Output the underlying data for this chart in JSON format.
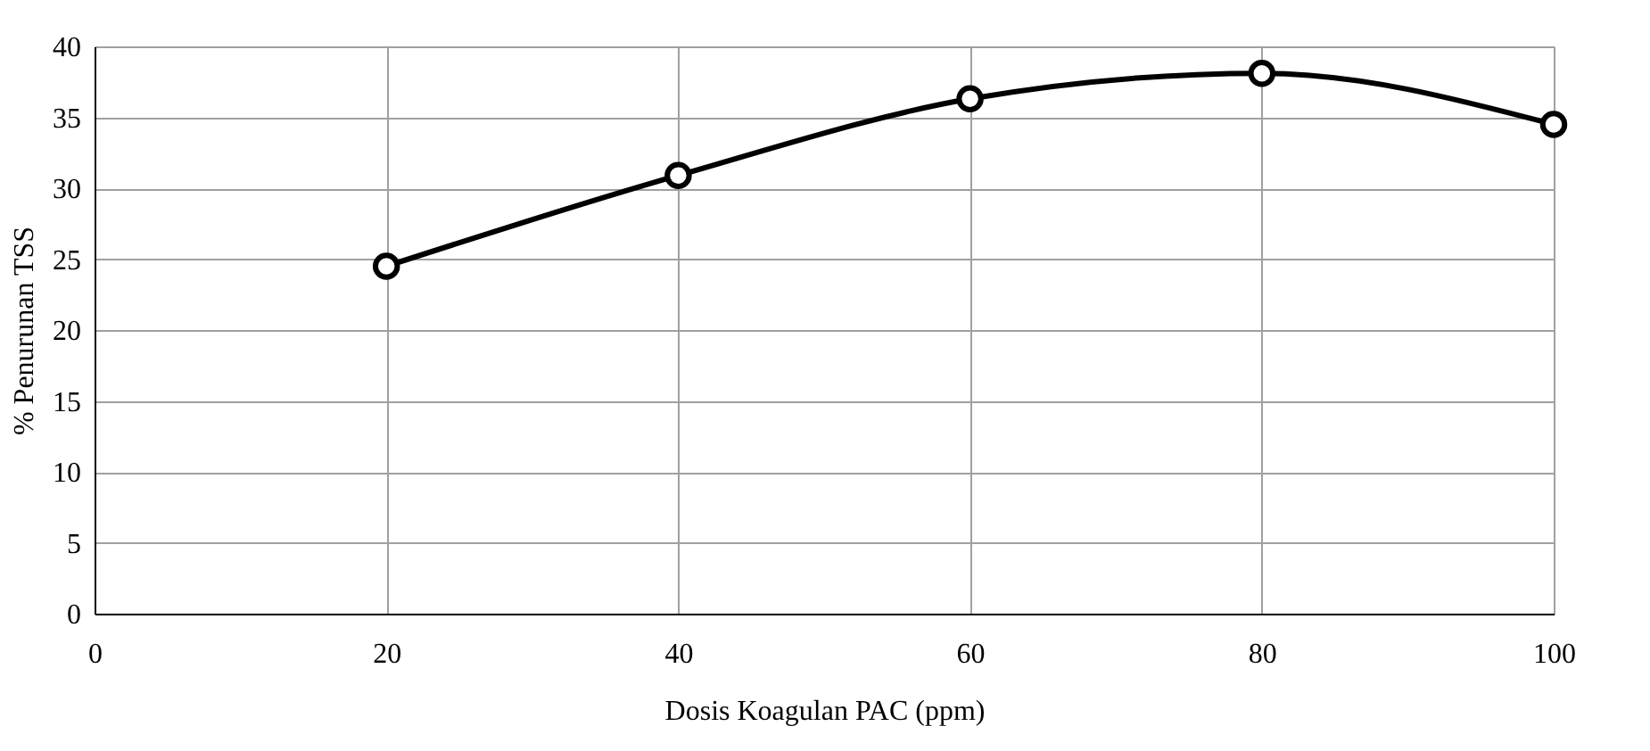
{
  "chart_data": {
    "type": "line",
    "xlabel": "Dosis Koagulan PAC (ppm)",
    "ylabel": "% Penurunan TSS",
    "x": [
      20,
      40,
      60,
      80,
      100
    ],
    "series": [
      {
        "color": "#000000",
        "values": [
          24.5,
          30.9,
          36.3,
          38.1,
          34.5
        ]
      }
    ],
    "xlim": [
      0,
      100
    ],
    "xticks": [
      0,
      20,
      40,
      60,
      80,
      100
    ],
    "ylim": [
      0,
      40
    ],
    "yticks": [
      0,
      5,
      10,
      15,
      20,
      25,
      30,
      35,
      40
    ],
    "grid": true,
    "marker": "circle",
    "line_style": "solid"
  }
}
